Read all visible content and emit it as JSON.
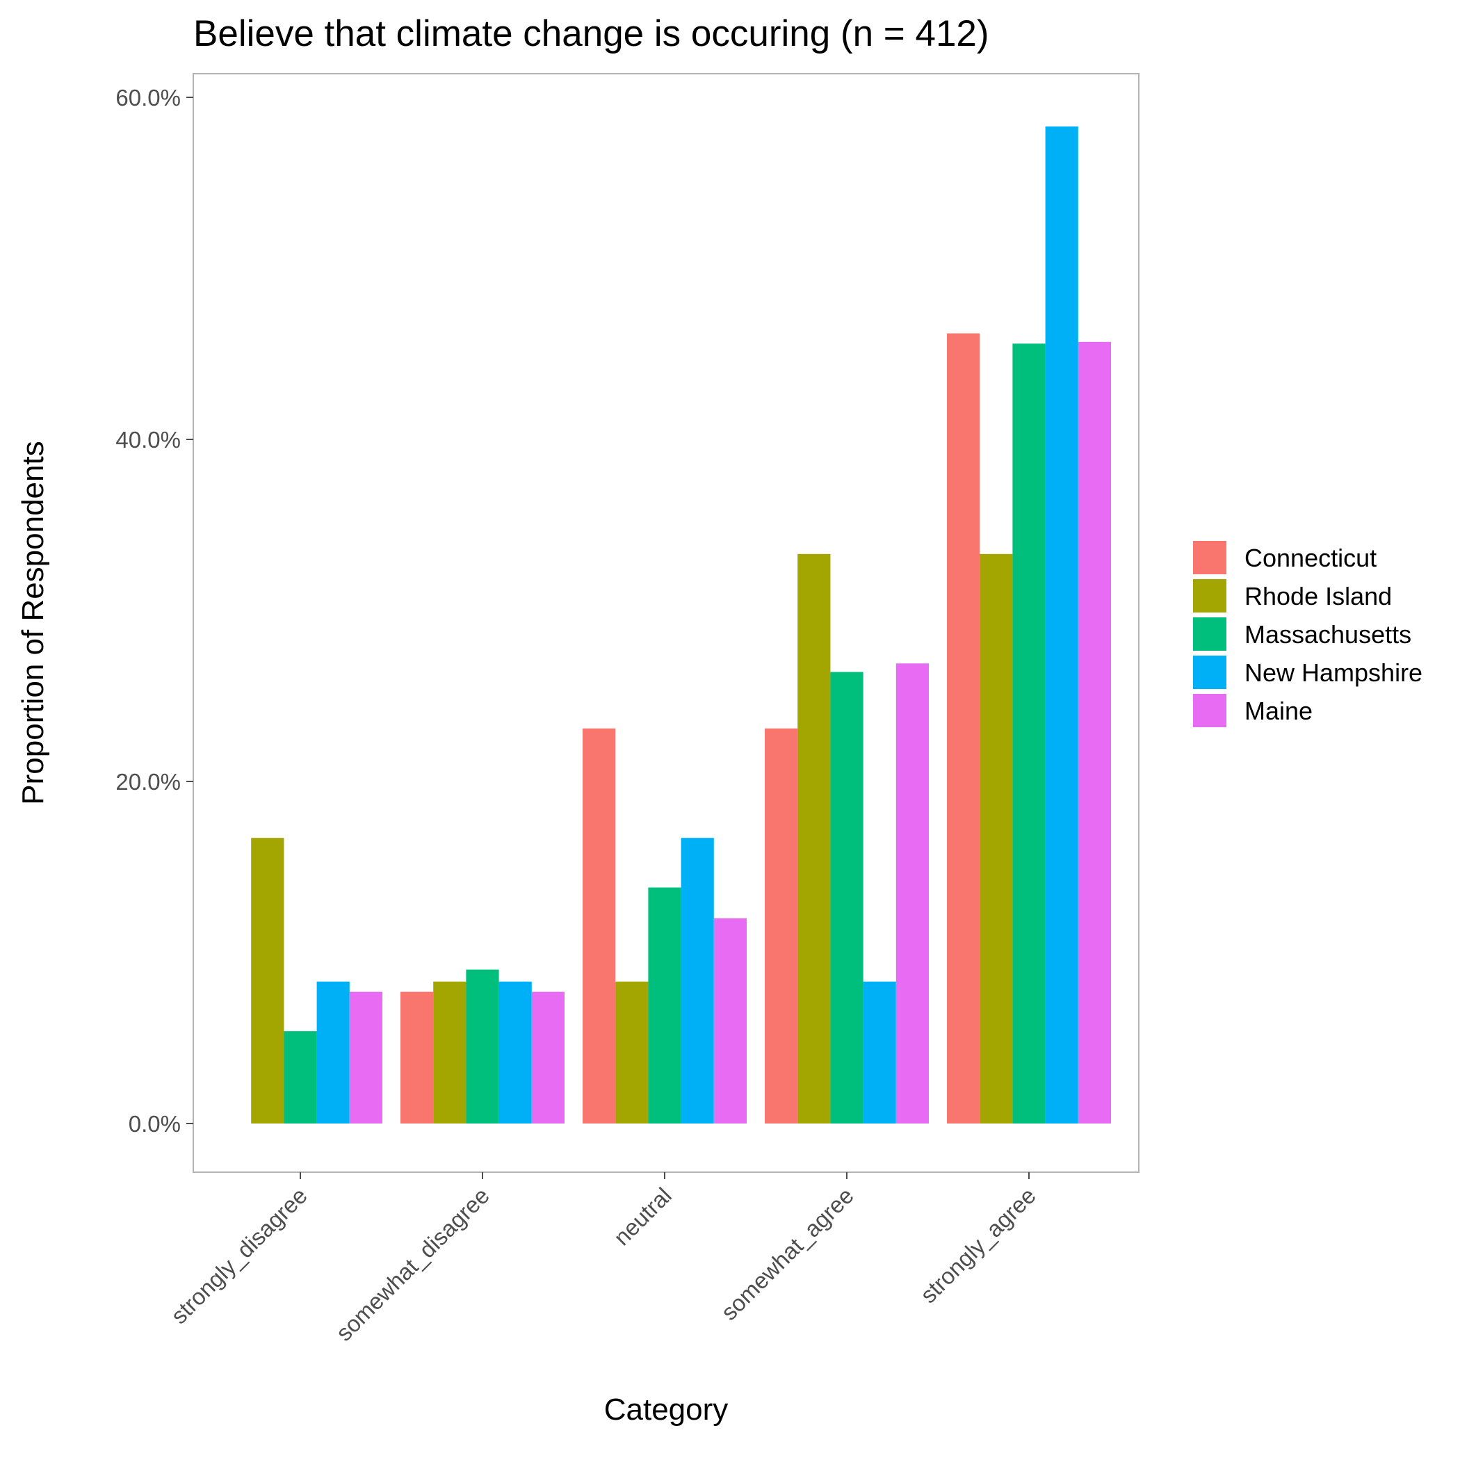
{
  "chart_data": {
    "type": "bar",
    "title": "Believe that climate change is occuring (n = 412)",
    "xlabel": "Category",
    "ylabel": "Proportion of Respondents",
    "categories": [
      "strongly_disagree",
      "somewhat_disagree",
      "neutral",
      "somewhat_agree",
      "strongly_agree"
    ],
    "series": [
      {
        "name": "Connecticut",
        "color": "#F8766D",
        "values": [
          0.0,
          7.7,
          23.1,
          23.1,
          46.2
        ]
      },
      {
        "name": "Rhode Island",
        "color": "#A3A500",
        "values": [
          16.7,
          8.3,
          8.3,
          33.3,
          33.3
        ]
      },
      {
        "name": "Massachusetts",
        "color": "#00BF7D",
        "values": [
          5.4,
          9.0,
          13.8,
          26.4,
          45.6
        ]
      },
      {
        "name": "New Hampshire",
        "color": "#00B0F6",
        "values": [
          8.3,
          8.3,
          16.7,
          8.3,
          58.3
        ]
      },
      {
        "name": "Maine",
        "color": "#E76BF3",
        "values": [
          7.7,
          7.7,
          12.0,
          26.9,
          45.7
        ]
      }
    ],
    "ylim": [
      0,
      60
    ],
    "yticks": [
      "0.0%",
      "20.0%",
      "40.0%",
      "60.0%"
    ],
    "y_tick_values": [
      0,
      20,
      40,
      60
    ],
    "grid": false,
    "legend_position": "right"
  }
}
